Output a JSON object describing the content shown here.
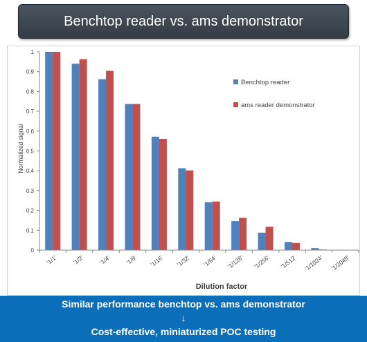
{
  "slide_title": "Benchtop reader vs. ams demonstrator",
  "chart_data": {
    "type": "bar",
    "categories": [
      "'1/1'",
      "'1/2'",
      "'1/4'",
      "'1/8'",
      "'1/16'",
      "'1/32'",
      "'1/64'",
      "'1/128'",
      "'1/256'",
      "'1/512'",
      "'1/1024'",
      "'1/2048'"
    ],
    "series": [
      {
        "name": "Benchtop reader",
        "color": "#4f81bd",
        "values": [
          1.0,
          0.94,
          0.862,
          0.737,
          0.572,
          0.413,
          0.242,
          0.146,
          0.088,
          0.041,
          0.01,
          0.002
        ]
      },
      {
        "name": "ams reader demonstrator",
        "color": "#c0504d",
        "values": [
          1.0,
          0.963,
          0.904,
          0.737,
          0.561,
          0.402,
          0.245,
          0.163,
          0.118,
          0.036,
          0.003,
          0.001
        ]
      }
    ],
    "xlabel": "Dilution factor",
    "ylabel": "Normalized signal",
    "ylim": [
      0,
      1
    ],
    "yticks": [
      "0",
      "0.1",
      "0.2",
      "0.3",
      "0.4",
      "0.5",
      "0.6",
      "0.7",
      "0.8",
      "0.9",
      "1"
    ],
    "grid": false,
    "legend_position": "top-right"
  },
  "footer": {
    "line1": "Similar performance benchtop vs. ams demonstrator",
    "arrow": "↓",
    "line2": "Cost-effective, miniaturized POC testing"
  }
}
